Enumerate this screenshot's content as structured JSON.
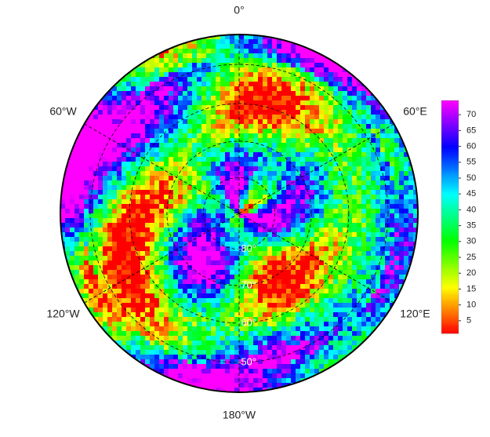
{
  "map": {
    "longitude_labels": [
      "0°",
      "60°E",
      "120°E",
      "180°W",
      "120°W",
      "60°W"
    ],
    "latitude_labels": [
      "-80°",
      "-70°",
      "-60°",
      "-50°"
    ],
    "latitudes": [
      -80,
      -70,
      -60,
      -50
    ],
    "colorbar": {
      "lim": [
        1,
        74.5
      ],
      "ticks": [
        5,
        10,
        15,
        20,
        25,
        30,
        35,
        40,
        45,
        50,
        55,
        60,
        65,
        70
      ]
    }
  }
}
